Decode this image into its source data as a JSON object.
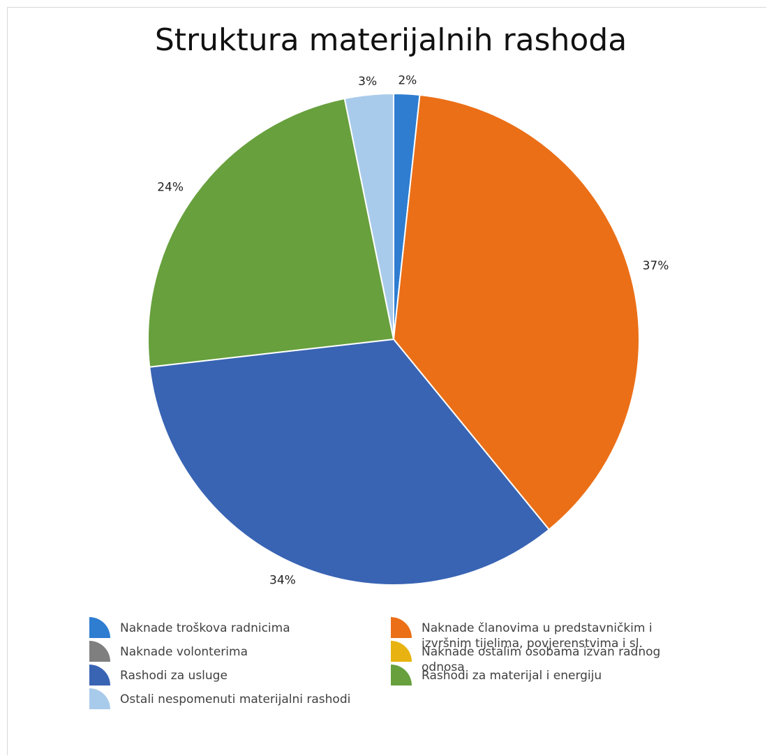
{
  "chart_data": {
    "type": "pie",
    "title": "Struktura materijalnih rashoda",
    "legend_placement": "bottom",
    "slices": [
      {
        "name": "Naknade troškova radnicima",
        "value": 1.7,
        "label": "2%",
        "color": "#2E7DD1"
      },
      {
        "name": "Naknade članovima u predstavničkim i izvršnim tijelima, povjerenstvima i sl.",
        "value": 37.4,
        "label": "37%",
        "color": "#EB6F17"
      },
      {
        "name": "Naknade volonterima",
        "value": 0,
        "label": "",
        "color": "#7F7F7F"
      },
      {
        "name": "Naknade ostalim osobama izvan radnog odnosa",
        "value": 0,
        "label": "",
        "color": "#E8B311"
      },
      {
        "name": "Rashodi za usluge",
        "value": 34.1,
        "label": "34%",
        "color": "#3964B4"
      },
      {
        "name": "Rashodi za materijal i energiju",
        "value": 23.6,
        "label": "24%",
        "color": "#67A03D"
      },
      {
        "name": "Ostali nespomenuti materijalni rashodi",
        "value": 3.2,
        "label": "3%",
        "color": "#A9CBEB"
      }
    ],
    "legend_order": [
      0,
      1,
      2,
      3,
      4,
      5,
      6
    ]
  }
}
